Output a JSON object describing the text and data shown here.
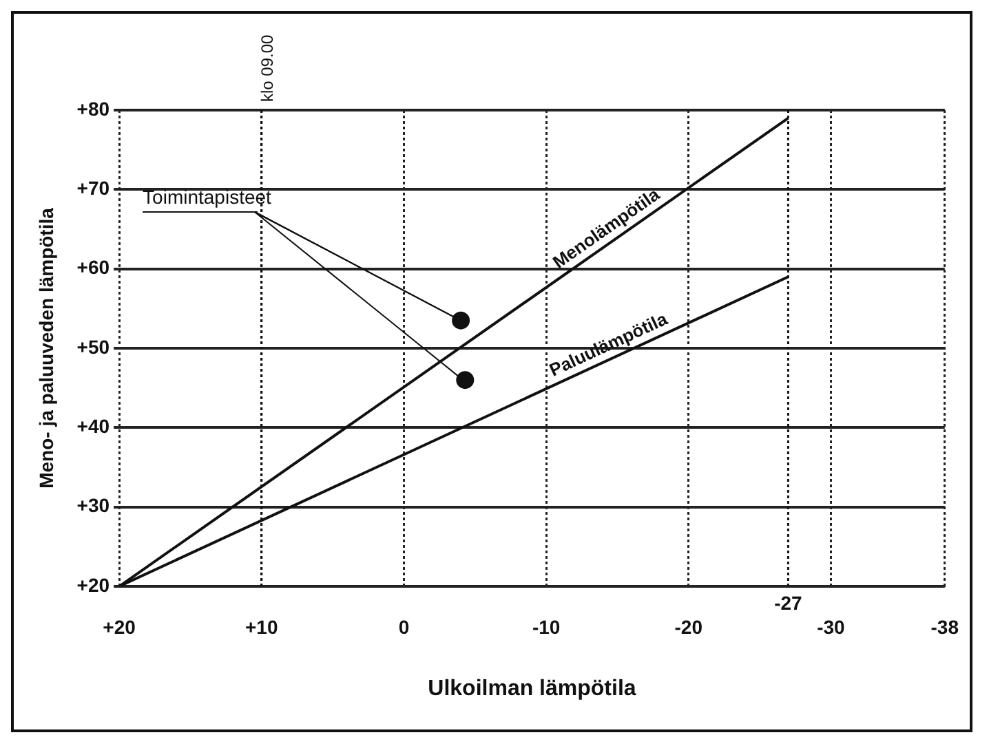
{
  "chart_data": {
    "type": "line",
    "xlabel": "Ulkoilman lämpötila",
    "ylabel": "Meno- ja paluuveden lämpötila",
    "xlim": [
      20,
      -38
    ],
    "xticks": [
      {
        "value": 20,
        "label": "+20"
      },
      {
        "value": 10,
        "label": "+10"
      },
      0,
      -10,
      -20,
      -30,
      -38
    ],
    "ylim": [
      20,
      80
    ],
    "yticks": [
      {
        "value": 20,
        "label": "+20"
      },
      {
        "value": 30,
        "label": "+30"
      },
      {
        "value": 40,
        "label": "+40"
      },
      {
        "value": 50,
        "label": "+50"
      },
      {
        "value": 60,
        "label": "+60"
      },
      {
        "value": 70,
        "label": "+70"
      },
      {
        "value": 80,
        "label": "+80"
      }
    ],
    "grid": true,
    "legend": false,
    "line_style": "solid",
    "series": [
      {
        "name": "Menolämpötila",
        "color": "#111111",
        "x": [
          20,
          -27
        ],
        "values": [
          20,
          79
        ]
      },
      {
        "name": "Paluulämpötila",
        "color": "#111111",
        "x": [
          20,
          -27
        ],
        "values": [
          20,
          59
        ]
      },
      {
        "type": "scatter",
        "marker": "circle",
        "color": "#111111",
        "x": [
          -4,
          -4.3
        ],
        "values": [
          53.5,
          46
        ]
      }
    ],
    "ref_lines": [
      {
        "axis": "x",
        "value": 10,
        "label": "klo 09.00",
        "color": "#111111",
        "line_style": "dotted"
      },
      {
        "axis": "x",
        "value": -27,
        "label": "-27",
        "color": "#111111",
        "line_style": "dotted"
      }
    ],
    "annotations": [
      {
        "text": "Toimintapisteet",
        "x": -4,
        "y": 53.5
      }
    ]
  }
}
